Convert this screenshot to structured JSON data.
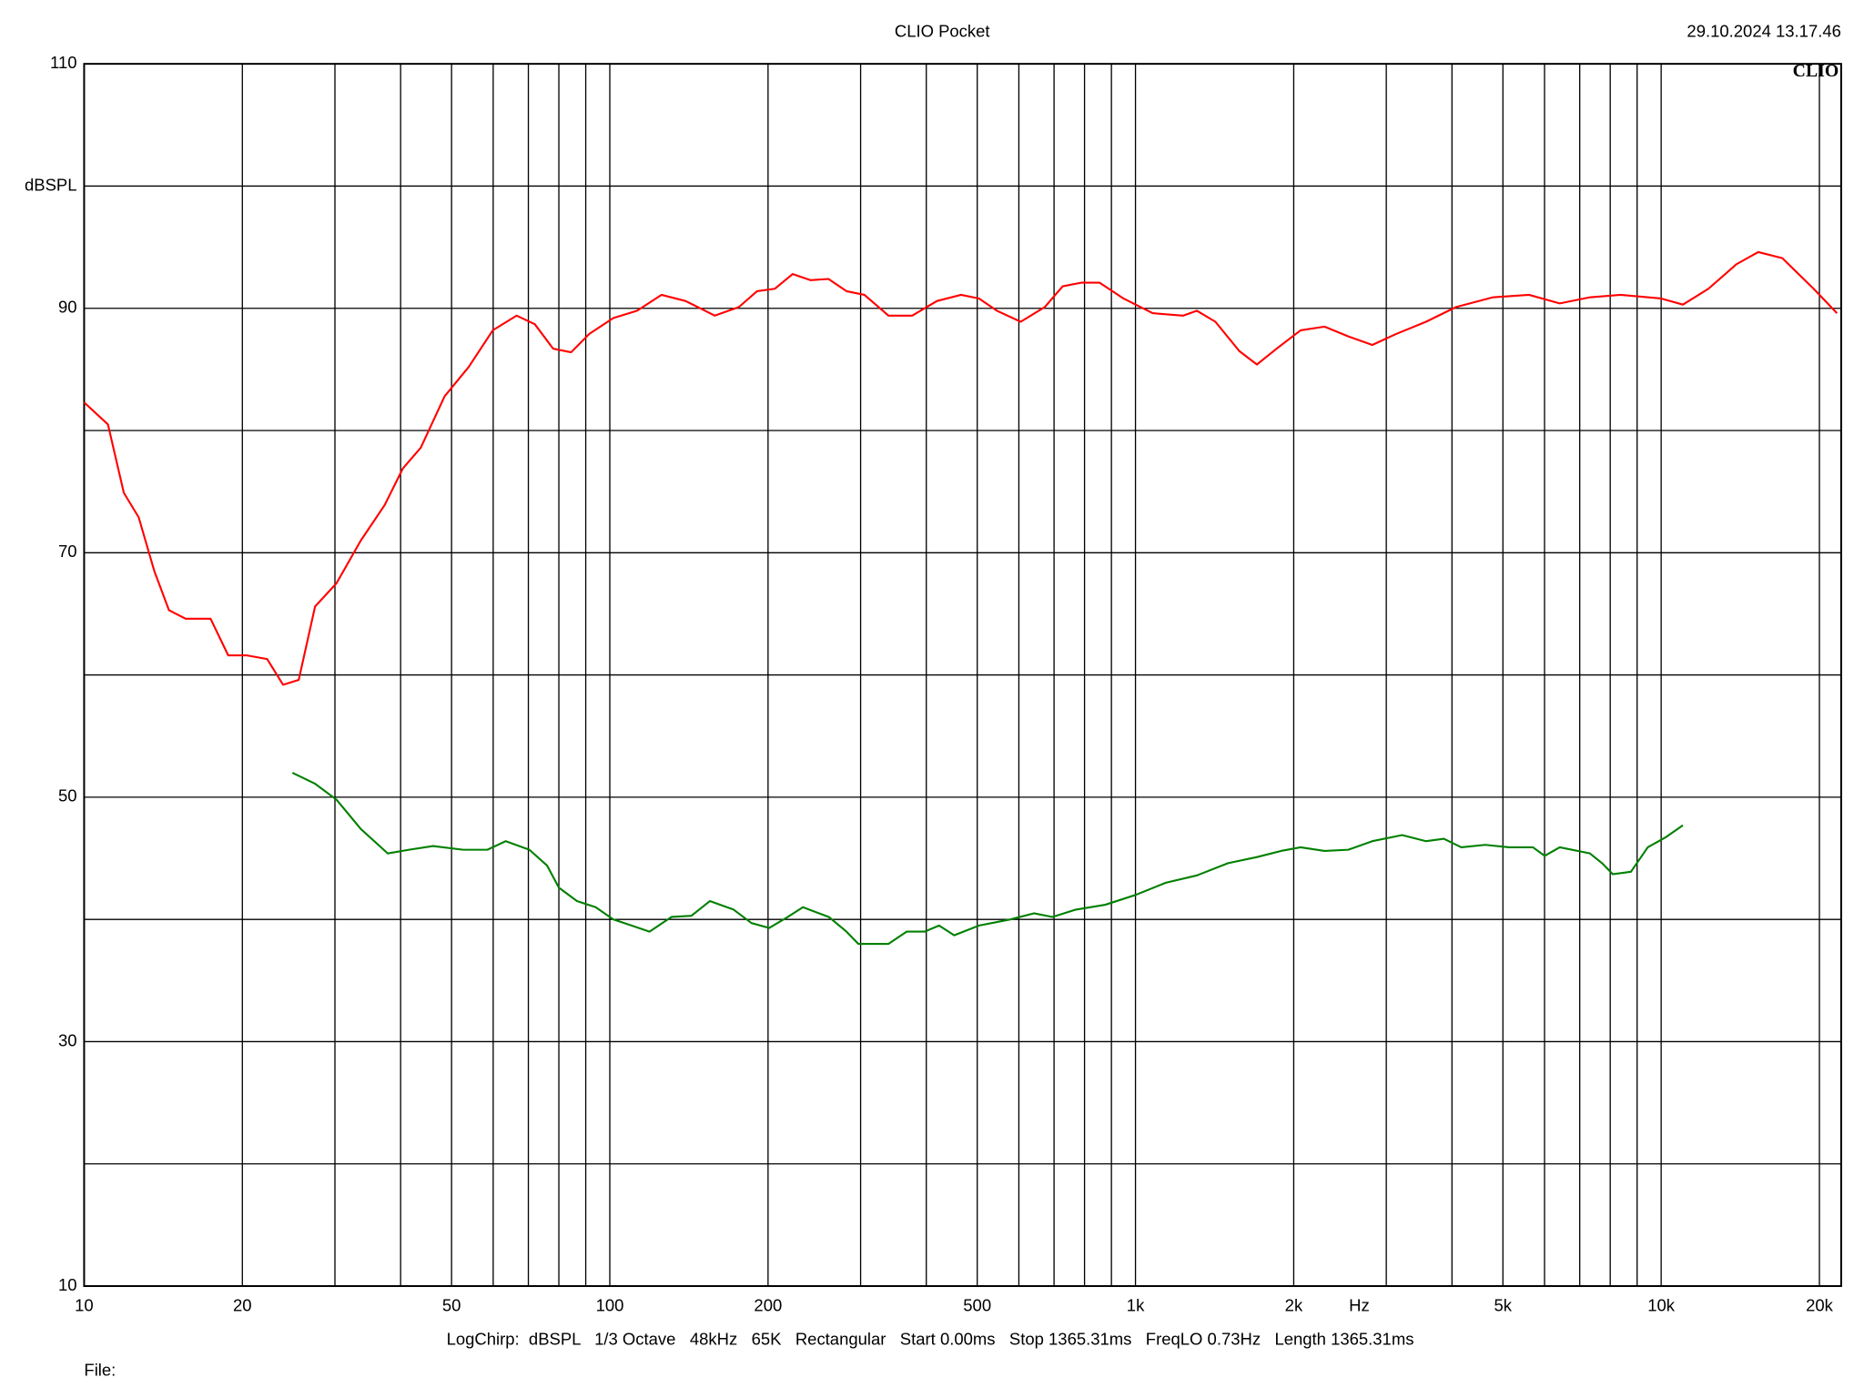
{
  "chart_data": {
    "type": "line",
    "title": "CLIO Pocket",
    "timestamp": "29.10.2024 13.17.46",
    "logo": "CLIO",
    "y_label": "dBSPL",
    "x_label": "Hz",
    "footer": "LogChirp:  dBSPL   1/3 Octave   48kHz   65K   Rectangular   Start 0.00ms   Stop 1365.31ms   FreqLO 0.73Hz   Length 1365.31ms",
    "file_label": "File:",
    "x_scale": "log",
    "grid": true,
    "xlim": [
      10,
      22000
    ],
    "ylim": [
      10,
      110
    ],
    "xticks": [
      10,
      20,
      50,
      100,
      200,
      500,
      {
        "value": 1000,
        "label": "1k"
      },
      {
        "value": 2000,
        "label": "2k"
      },
      {
        "value": 5000,
        "label": "5k"
      },
      {
        "value": 10000,
        "label": "10k"
      },
      {
        "value": 20000,
        "label": "20k"
      }
    ],
    "xticks_minor": [
      30,
      40,
      60,
      70,
      80,
      90,
      300,
      400,
      600,
      700,
      800,
      900,
      3000,
      4000,
      6000,
      7000,
      8000,
      9000
    ],
    "yticks": [
      10,
      30,
      50,
      70,
      90,
      110
    ],
    "yticks_minor": [
      20,
      40,
      60,
      80,
      100
    ],
    "series": [
      {
        "color": "#ff0000",
        "x": [
          10,
          11.1,
          11.9,
          12.7,
          13.6,
          14.5,
          15.6,
          17.4,
          18.8,
          20.4,
          22.3,
          23.9,
          25.6,
          27.5,
          30.2,
          33.6,
          37.3,
          40.4,
          43.7,
          48.5,
          53.9,
          59.9,
          66.5,
          72,
          78,
          84.4,
          91.4,
          101.5,
          112.7,
          125.4,
          139.3,
          158.4,
          176,
          190.6,
          206.1,
          222.8,
          241,
          260.6,
          282,
          305,
          339,
          376,
          419.3,
          465.9,
          504,
          545,
          605,
          672,
          727,
          790,
          854,
          949,
          1078,
          1233,
          1309,
          1419,
          1576,
          1702,
          1856,
          2061,
          2289,
          2540,
          2822,
          3132,
          3571,
          4072,
          4787,
          5605,
          6413,
          7320,
          8368,
          10000,
          11000,
          12300,
          13900,
          15300,
          17000,
          19500,
          21600
        ],
        "values": [
          82.3,
          80.5,
          74.9,
          72.9,
          68.5,
          65.3,
          64.6,
          64.6,
          61.6,
          61.6,
          61.3,
          59.2,
          59.6,
          65.6,
          67.5,
          71.0,
          73.9,
          76.9,
          78.6,
          82.8,
          85.2,
          88.2,
          89.4,
          88.7,
          86.7,
          86.4,
          87.9,
          89.2,
          89.8,
          91.1,
          90.6,
          89.4,
          90.1,
          91.4,
          91.6,
          92.8,
          92.3,
          92.4,
          91.4,
          91.1,
          89.4,
          89.4,
          90.6,
          91.1,
          90.8,
          89.8,
          88.9,
          90.1,
          91.8,
          92.1,
          92.1,
          90.8,
          89.6,
          89.4,
          89.8,
          88.9,
          86.5,
          85.4,
          86.7,
          88.2,
          88.5,
          87.7,
          87.0,
          87.9,
          88.9,
          90.1,
          90.9,
          91.1,
          90.4,
          90.9,
          91.1,
          90.8,
          90.3,
          91.6,
          93.6,
          94.6,
          94.1,
          91.6,
          89.6
        ]
      },
      {
        "color": "#008000",
        "x": [
          24.9,
          27.5,
          30.2,
          33.6,
          37.8,
          41.5,
          46.1,
          52.6,
          58.5,
          63.4,
          70.3,
          76,
          80,
          86.6,
          94,
          101.5,
          110,
          119,
          131,
          143,
          155,
          172,
          186,
          201,
          218,
          233,
          261,
          282,
          297,
          339,
          367,
          397,
          423,
          452,
          504,
          578,
          641,
          695,
          770,
          876,
          1000,
          1142,
          1309,
          1500,
          1702,
          1891,
          2061,
          2289,
          2540,
          2822,
          3215,
          3571,
          3860,
          4167,
          4626,
          5137,
          5703,
          6005,
          6413,
          7320,
          7720,
          8090,
          8760,
          9430,
          10180,
          11000
        ],
        "values": [
          52.0,
          51.1,
          49.8,
          47.4,
          45.4,
          45.7,
          46.0,
          45.7,
          45.7,
          46.4,
          45.7,
          44.4,
          42.6,
          41.5,
          41.0,
          40.0,
          39.5,
          39.0,
          40.2,
          40.3,
          41.5,
          40.8,
          39.7,
          39.3,
          40.2,
          41.0,
          40.2,
          39.0,
          38.0,
          38.0,
          39.0,
          39.0,
          39.5,
          38.7,
          39.5,
          40.0,
          40.5,
          40.2,
          40.8,
          41.2,
          42.0,
          43.0,
          43.6,
          44.6,
          45.1,
          45.6,
          45.9,
          45.6,
          45.7,
          46.4,
          46.9,
          46.4,
          46.6,
          45.9,
          46.1,
          45.9,
          45.9,
          45.2,
          45.9,
          45.4,
          44.6,
          43.7,
          43.9,
          45.9,
          46.7,
          47.7
        ]
      }
    ]
  }
}
